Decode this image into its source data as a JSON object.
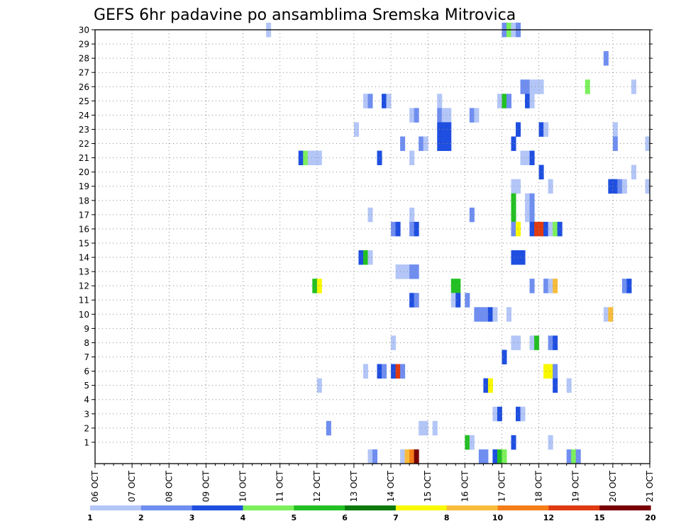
{
  "chart_data": {
    "type": "heatmap",
    "title": "GEFS 6hr padavine po ansamblima Sremska Mitrovica",
    "x_tick_labels": [
      "06 OCT",
      "07 OCT",
      "08 OCT",
      "09 OCT",
      "10 OCT",
      "11 OCT",
      "12 OCT",
      "13 OCT",
      "14 OCT",
      "15 OCT",
      "16 OCT",
      "17 OCT",
      "18 OCT",
      "19 OCT",
      "20 OCT",
      "21 OCT"
    ],
    "y_tick_labels": [
      "1",
      "2",
      "3",
      "4",
      "5",
      "6",
      "7",
      "8",
      "9",
      "10",
      "11",
      "12",
      "13",
      "14",
      "15",
      "16",
      "17",
      "18",
      "19",
      "20",
      "21",
      "22",
      "23",
      "24",
      "25",
      "26",
      "27",
      "28",
      "29",
      "30"
    ],
    "xlim": [
      0,
      60
    ],
    "ylim": [
      0,
      30
    ],
    "grid": true,
    "legend_labels": [
      "1",
      "2",
      "3",
      "4",
      "5",
      "6",
      "7",
      "8",
      "10",
      "12",
      "15",
      "20"
    ],
    "color_scale": [
      "#b3c6f7",
      "#6f8ef0",
      "#1f4fe0",
      "#1f4fe0",
      "#7cf05c",
      "#22c022",
      "#0d7a0d",
      "#f8f800",
      "#f8bc3c",
      "#f57e1a",
      "#e03a10",
      "#7a0000"
    ],
    "legend_colors": [
      "#b3c6f7",
      "#6f8ef0",
      "#1f4fe0",
      "#7cf05c",
      "#22c022",
      "#0d7a0d",
      "#f8f800",
      "#f8bc3c",
      "#f57e1a",
      "#e03a10",
      "#7a0000"
    ],
    "cells": [
      [
        18.5,
        30,
        1
      ],
      [
        44,
        30,
        2
      ],
      [
        44.5,
        30,
        5
      ],
      [
        45,
        30,
        1
      ],
      [
        45.5,
        30,
        2
      ],
      [
        55,
        28,
        2
      ],
      [
        46,
        26,
        2
      ],
      [
        46.5,
        26,
        2
      ],
      [
        47,
        26,
        1
      ],
      [
        47.5,
        26,
        1
      ],
      [
        48,
        26,
        1
      ],
      [
        53,
        26,
        5
      ],
      [
        58,
        26,
        1
      ],
      [
        29,
        25,
        1
      ],
      [
        29.5,
        25,
        2
      ],
      [
        31,
        25,
        3
      ],
      [
        31.5,
        25,
        1
      ],
      [
        37,
        25,
        1
      ],
      [
        43.5,
        25,
        1
      ],
      [
        44,
        25,
        6
      ],
      [
        44.5,
        25,
        2
      ],
      [
        46.5,
        25,
        3
      ],
      [
        47,
        25,
        1
      ],
      [
        34,
        24,
        1
      ],
      [
        34.5,
        24,
        2
      ],
      [
        37,
        24,
        2
      ],
      [
        37.5,
        24,
        1
      ],
      [
        38,
        24,
        1
      ],
      [
        40.5,
        24,
        2
      ],
      [
        41,
        24,
        1
      ],
      [
        28,
        23,
        1
      ],
      [
        37,
        23,
        3
      ],
      [
        37.5,
        23,
        3
      ],
      [
        38,
        23,
        3
      ],
      [
        45.5,
        23,
        3
      ],
      [
        48,
        23,
        3
      ],
      [
        48.5,
        23,
        1
      ],
      [
        56,
        23,
        1
      ],
      [
        33,
        22,
        2
      ],
      [
        35,
        22,
        2
      ],
      [
        35.5,
        22,
        1
      ],
      [
        37,
        22,
        3
      ],
      [
        37.5,
        22,
        3
      ],
      [
        38,
        22,
        3
      ],
      [
        45,
        22,
        3
      ],
      [
        56,
        22,
        2
      ],
      [
        59.5,
        22,
        1
      ],
      [
        22,
        21,
        3
      ],
      [
        22.5,
        21,
        5
      ],
      [
        23,
        21,
        1
      ],
      [
        23.5,
        21,
        1
      ],
      [
        24,
        21,
        1
      ],
      [
        30.5,
        21,
        3
      ],
      [
        34,
        21,
        1
      ],
      [
        46,
        21,
        1
      ],
      [
        46.5,
        21,
        1
      ],
      [
        47,
        21,
        4
      ],
      [
        48,
        20,
        3
      ],
      [
        58,
        20,
        1
      ],
      [
        45,
        19,
        1
      ],
      [
        45.5,
        19,
        1
      ],
      [
        49,
        19,
        1
      ],
      [
        55.5,
        19,
        3
      ],
      [
        56,
        19,
        4
      ],
      [
        56.5,
        19,
        2
      ],
      [
        57,
        19,
        1
      ],
      [
        59.5,
        19,
        1
      ],
      [
        45,
        18,
        6
      ],
      [
        46.5,
        18,
        1
      ],
      [
        47,
        18,
        2
      ],
      [
        29.5,
        17,
        1
      ],
      [
        34,
        17,
        1
      ],
      [
        40.5,
        17,
        2
      ],
      [
        45,
        17,
        6
      ],
      [
        46.5,
        17,
        1
      ],
      [
        47,
        17,
        2
      ],
      [
        32,
        16,
        2
      ],
      [
        32.5,
        16,
        4
      ],
      [
        34,
        16,
        2
      ],
      [
        34.5,
        16,
        3
      ],
      [
        45,
        16,
        2
      ],
      [
        45.5,
        16,
        8
      ],
      [
        47,
        16,
        3
      ],
      [
        47.5,
        16,
        11
      ],
      [
        48,
        16,
        11
      ],
      [
        48.5,
        16,
        4
      ],
      [
        49,
        16,
        1
      ],
      [
        49.5,
        16,
        5
      ],
      [
        50,
        16,
        3
      ],
      [
        28.5,
        14,
        3
      ],
      [
        29,
        14,
        6
      ],
      [
        29.5,
        14,
        1
      ],
      [
        45,
        14,
        4
      ],
      [
        45.5,
        14,
        4
      ],
      [
        46,
        14,
        4
      ],
      [
        32.5,
        13,
        1
      ],
      [
        33,
        13,
        1
      ],
      [
        33.5,
        13,
        1
      ],
      [
        34,
        13,
        2
      ],
      [
        34.5,
        13,
        2
      ],
      [
        23.5,
        12,
        6
      ],
      [
        24,
        12,
        8
      ],
      [
        38.5,
        12,
        6
      ],
      [
        39,
        12,
        6
      ],
      [
        47,
        12,
        2
      ],
      [
        48.5,
        12,
        2
      ],
      [
        49,
        12,
        1
      ],
      [
        49.5,
        12,
        9
      ],
      [
        57,
        12,
        2
      ],
      [
        57.5,
        12,
        4
      ],
      [
        34,
        11,
        3
      ],
      [
        34.5,
        11,
        2
      ],
      [
        38.5,
        11,
        1
      ],
      [
        39,
        11,
        4
      ],
      [
        40,
        11,
        2
      ],
      [
        41,
        10,
        2
      ],
      [
        41.5,
        10,
        2
      ],
      [
        42,
        10,
        2
      ],
      [
        42.5,
        10,
        3
      ],
      [
        43,
        10,
        1
      ],
      [
        44.5,
        10,
        1
      ],
      [
        55,
        10,
        1
      ],
      [
        55.5,
        10,
        9
      ],
      [
        32,
        8,
        1
      ],
      [
        45,
        8,
        1
      ],
      [
        45.5,
        8,
        1
      ],
      [
        47,
        8,
        1
      ],
      [
        47.5,
        8,
        6
      ],
      [
        49,
        8,
        2
      ],
      [
        49.5,
        8,
        3
      ],
      [
        44,
        7,
        3
      ],
      [
        29,
        6,
        1
      ],
      [
        30.5,
        6,
        3
      ],
      [
        31,
        6,
        2
      ],
      [
        32,
        6,
        3
      ],
      [
        32.5,
        6,
        11
      ],
      [
        33,
        6,
        2
      ],
      [
        48.5,
        6,
        8
      ],
      [
        49,
        6,
        8
      ],
      [
        49.5,
        6,
        2
      ],
      [
        24,
        5,
        1
      ],
      [
        42,
        5,
        3
      ],
      [
        42.5,
        5,
        8
      ],
      [
        49.5,
        5,
        4
      ],
      [
        51,
        5,
        1
      ],
      [
        43,
        3,
        1
      ],
      [
        43.5,
        3,
        4
      ],
      [
        45.5,
        3,
        3
      ],
      [
        46,
        3,
        1
      ],
      [
        25,
        2,
        2
      ],
      [
        35,
        2,
        1
      ],
      [
        35.5,
        2,
        1
      ],
      [
        36.5,
        2,
        1
      ],
      [
        40,
        1,
        6
      ],
      [
        40.5,
        1,
        1
      ],
      [
        45,
        1,
        3
      ],
      [
        49,
        1,
        1
      ],
      [
        29.5,
        0,
        1
      ],
      [
        30,
        0,
        2
      ],
      [
        33,
        0,
        1
      ],
      [
        33.5,
        0,
        9
      ],
      [
        34,
        0,
        10
      ],
      [
        34.5,
        0,
        12
      ],
      [
        41.5,
        0,
        2
      ],
      [
        42,
        0,
        2
      ],
      [
        43,
        0,
        3
      ],
      [
        43.5,
        0,
        6
      ],
      [
        44,
        0,
        5
      ],
      [
        51,
        0,
        2
      ],
      [
        51.5,
        0,
        5
      ],
      [
        52,
        0,
        2
      ]
    ]
  }
}
